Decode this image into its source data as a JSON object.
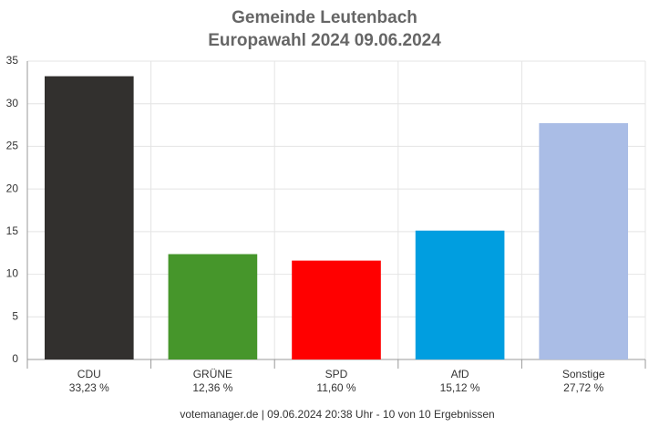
{
  "chart_data": {
    "type": "bar",
    "title": "Gemeinde Leutenbach",
    "subtitle": "Europawahl 2024 09.06.2024",
    "categories": [
      "CDU",
      "GRÜNE",
      "SPD",
      "AfD",
      "Sonstige"
    ],
    "values": [
      33.23,
      12.36,
      11.6,
      15.12,
      27.72
    ],
    "value_labels": [
      "33,23 %",
      "12,36 %",
      "11,60 %",
      "15,12 %",
      "27,72 %"
    ],
    "colors": [
      "#32302e",
      "#46962b",
      "#ff0000",
      "#009ee0",
      "#aabde6"
    ],
    "ylim": [
      0,
      35
    ],
    "yticks": [
      0,
      5,
      10,
      15,
      20,
      25,
      30,
      35
    ],
    "grid": true,
    "footer": "votemanager.de | 09.06.2024 20:38 Uhr - 10 von 10 Ergebnissen"
  }
}
